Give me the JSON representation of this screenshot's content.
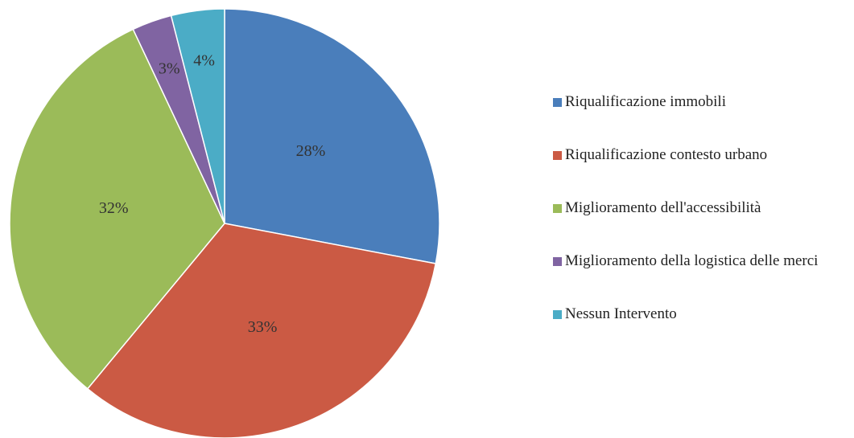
{
  "chart_data": {
    "type": "pie",
    "categories": [
      "Riqualificazione immobili",
      "Riqualificazione contesto urbano",
      "Miglioramento dell'accessibilità",
      "Miglioramento della logistica delle merci",
      "Nessun Intervento"
    ],
    "values": [
      28,
      33,
      32,
      3,
      4
    ],
    "value_labels": [
      "28%",
      "33%",
      "32%",
      "3%",
      "4%"
    ],
    "colors": [
      "#4a7ebb",
      "#cb5a44",
      "#9bbb59",
      "#8064a2",
      "#4bacc6"
    ],
    "legend": "right"
  }
}
